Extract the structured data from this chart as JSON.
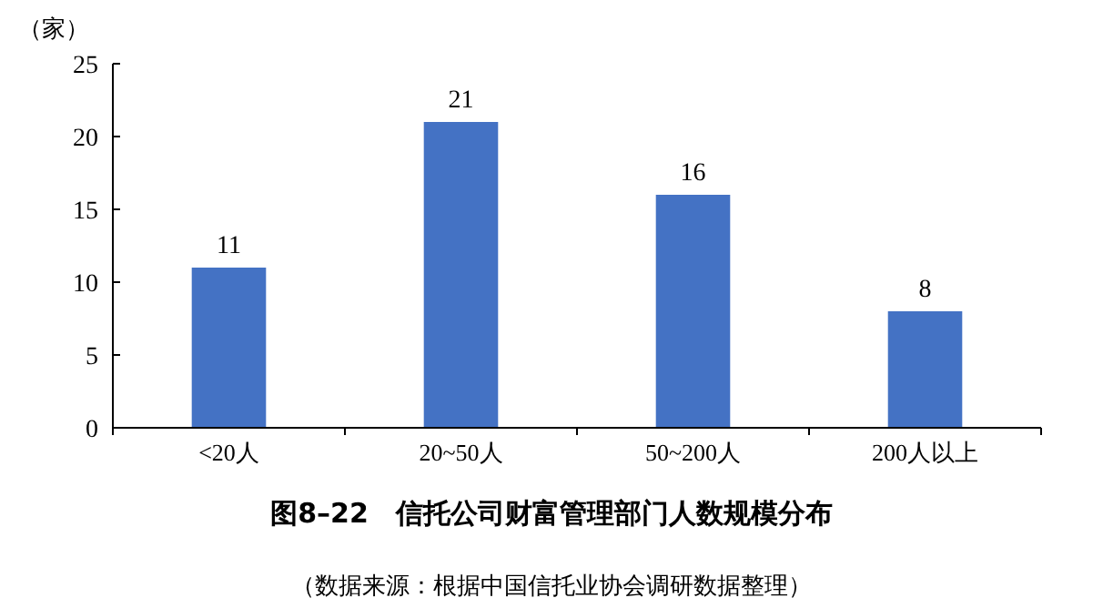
{
  "chart_data": {
    "type": "bar",
    "title": "图8–22　信托公司财富管理部门人数规模分布",
    "ylabel": "（家）",
    "annotations": [
      "（数据来源：根据中国信托业协会调研数据整理）"
    ],
    "categories": [
      "<20人",
      "20~50人",
      "50~200人",
      "200人以上"
    ],
    "values": [
      11,
      21,
      16,
      8
    ],
    "color": "#4472c4",
    "ylim": [
      0,
      25
    ],
    "yticks": [
      0,
      5,
      10,
      15,
      20,
      25
    ],
    "data_labels": true,
    "grid": false
  }
}
